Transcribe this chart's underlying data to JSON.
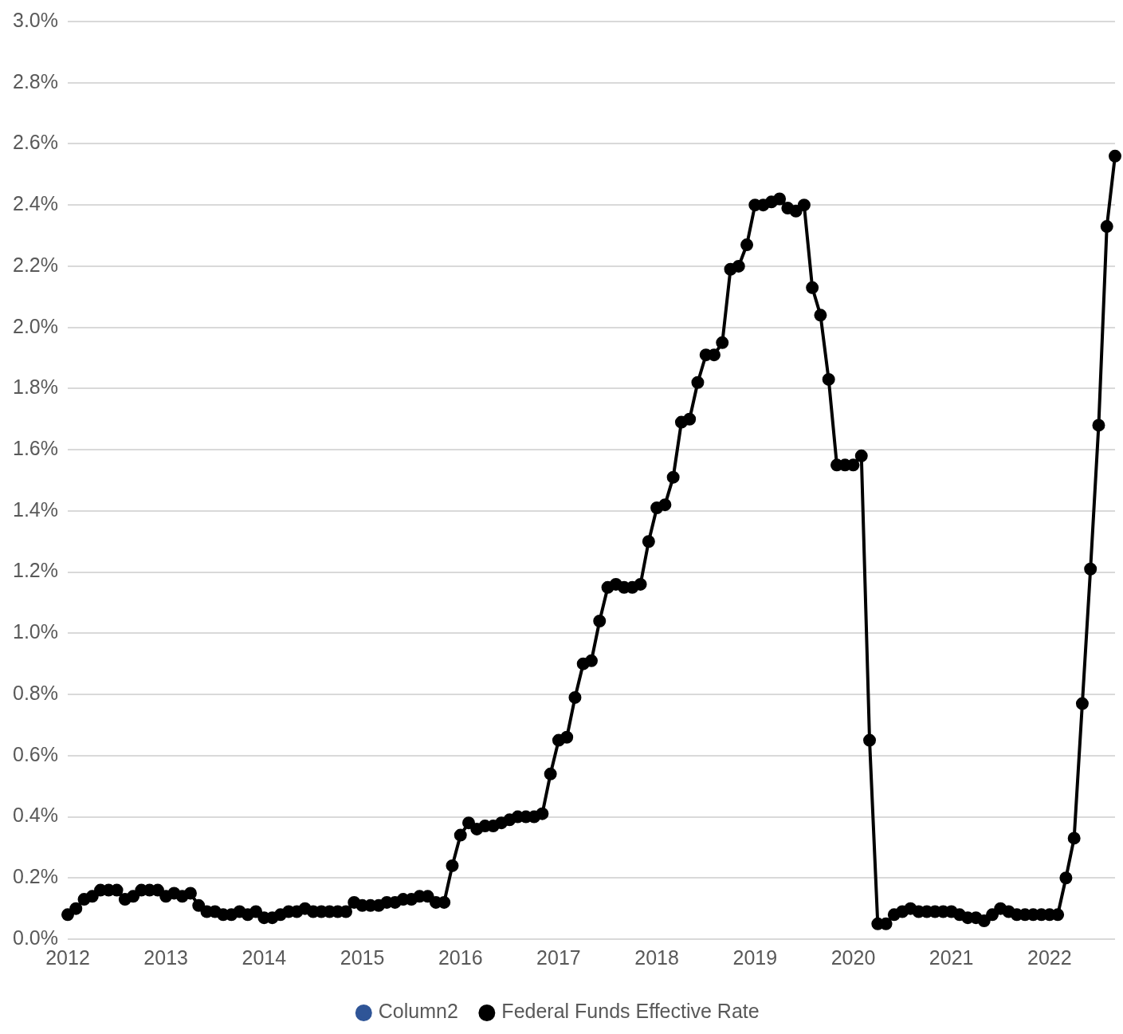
{
  "chart_data": {
    "type": "line",
    "x": [
      "2012-01",
      "2012-02",
      "2012-03",
      "2012-04",
      "2012-05",
      "2012-06",
      "2012-07",
      "2012-08",
      "2012-09",
      "2012-10",
      "2012-11",
      "2012-12",
      "2013-01",
      "2013-02",
      "2013-03",
      "2013-04",
      "2013-05",
      "2013-06",
      "2013-07",
      "2013-08",
      "2013-09",
      "2013-10",
      "2013-11",
      "2013-12",
      "2014-01",
      "2014-02",
      "2014-03",
      "2014-04",
      "2014-05",
      "2014-06",
      "2014-07",
      "2014-08",
      "2014-09",
      "2014-10",
      "2014-11",
      "2014-12",
      "2015-01",
      "2015-02",
      "2015-03",
      "2015-04",
      "2015-05",
      "2015-06",
      "2015-07",
      "2015-08",
      "2015-09",
      "2015-10",
      "2015-11",
      "2015-12",
      "2016-01",
      "2016-02",
      "2016-03",
      "2016-04",
      "2016-05",
      "2016-06",
      "2016-07",
      "2016-08",
      "2016-09",
      "2016-10",
      "2016-11",
      "2016-12",
      "2017-01",
      "2017-02",
      "2017-03",
      "2017-04",
      "2017-05",
      "2017-06",
      "2017-07",
      "2017-08",
      "2017-09",
      "2017-10",
      "2017-11",
      "2017-12",
      "2018-01",
      "2018-02",
      "2018-03",
      "2018-04",
      "2018-05",
      "2018-06",
      "2018-07",
      "2018-08",
      "2018-09",
      "2018-10",
      "2018-11",
      "2018-12",
      "2019-01",
      "2019-02",
      "2019-03",
      "2019-04",
      "2019-05",
      "2019-06",
      "2019-07",
      "2019-08",
      "2019-09",
      "2019-10",
      "2019-11",
      "2019-12",
      "2020-01",
      "2020-02",
      "2020-03",
      "2020-04",
      "2020-05",
      "2020-06",
      "2020-07",
      "2020-08",
      "2020-09",
      "2020-10",
      "2020-11",
      "2020-12",
      "2021-01",
      "2021-02",
      "2021-03",
      "2021-04",
      "2021-05",
      "2021-06",
      "2021-07",
      "2021-08",
      "2021-09",
      "2021-10",
      "2021-11",
      "2021-12",
      "2022-01",
      "2022-02",
      "2022-03",
      "2022-04",
      "2022-05",
      "2022-06",
      "2022-07",
      "2022-08",
      "2022-09"
    ],
    "series": [
      {
        "name": "Column2",
        "color": "#2f5597",
        "values": [
          null,
          null,
          null,
          null,
          null,
          null,
          null,
          null,
          null,
          null,
          null,
          null,
          null,
          null,
          null,
          null,
          null,
          null,
          null,
          null,
          null,
          null,
          null,
          null,
          null,
          null,
          null,
          null,
          null,
          null,
          null,
          null,
          null,
          null,
          null,
          null,
          null,
          null,
          null,
          null,
          null,
          null,
          null,
          null,
          null,
          null,
          null,
          null,
          null,
          null,
          null,
          null,
          null,
          null,
          null,
          null,
          null,
          null,
          null,
          null,
          null,
          null,
          null,
          null,
          null,
          null,
          null,
          null,
          null,
          null,
          null,
          null,
          null,
          null,
          null,
          null,
          null,
          null,
          null,
          null,
          null,
          null,
          null,
          null,
          null,
          null,
          null,
          null,
          null,
          null,
          null,
          null,
          null,
          null,
          null,
          null,
          null,
          null,
          null,
          null,
          null,
          null,
          null,
          null,
          null,
          null,
          null,
          null,
          null,
          null,
          null,
          null,
          null,
          null,
          null,
          null,
          null,
          null,
          null,
          null,
          null,
          null,
          null,
          null,
          null,
          null,
          null,
          null,
          null
        ]
      },
      {
        "name": "Federal Funds Effective Rate",
        "color": "#000000",
        "values": [
          0.08,
          0.1,
          0.13,
          0.14,
          0.16,
          0.16,
          0.16,
          0.13,
          0.14,
          0.16,
          0.16,
          0.16,
          0.14,
          0.15,
          0.14,
          0.15,
          0.11,
          0.09,
          0.09,
          0.08,
          0.08,
          0.09,
          0.08,
          0.09,
          0.07,
          0.07,
          0.08,
          0.09,
          0.09,
          0.1,
          0.09,
          0.09,
          0.09,
          0.09,
          0.09,
          0.12,
          0.11,
          0.11,
          0.11,
          0.12,
          0.12,
          0.13,
          0.13,
          0.14,
          0.14,
          0.12,
          0.12,
          0.24,
          0.34,
          0.38,
          0.36,
          0.37,
          0.37,
          0.38,
          0.39,
          0.4,
          0.4,
          0.4,
          0.41,
          0.54,
          0.65,
          0.66,
          0.79,
          0.9,
          0.91,
          1.04,
          1.15,
          1.16,
          1.15,
          1.15,
          1.16,
          1.3,
          1.41,
          1.42,
          1.51,
          1.69,
          1.7,
          1.82,
          1.91,
          1.91,
          1.95,
          2.19,
          2.2,
          2.27,
          2.4,
          2.4,
          2.41,
          2.42,
          2.39,
          2.38,
          2.4,
          2.13,
          2.04,
          1.83,
          1.55,
          1.55,
          1.55,
          1.58,
          0.65,
          0.05,
          0.05,
          0.08,
          0.09,
          0.1,
          0.09,
          0.09,
          0.09,
          0.09,
          0.09,
          0.08,
          0.07,
          0.07,
          0.06,
          0.08,
          0.1,
          0.09,
          0.08,
          0.08,
          0.08,
          0.08,
          0.08,
          0.08,
          0.2,
          0.33,
          0.77,
          1.21,
          1.68,
          2.33,
          2.56
        ]
      }
    ],
    "xlim": [
      "2012-01",
      "2022-09"
    ],
    "xticks": [
      "2012",
      "2013",
      "2014",
      "2015",
      "2016",
      "2017",
      "2018",
      "2019",
      "2020",
      "2021",
      "2022"
    ],
    "ylim": [
      0,
      3
    ],
    "yticks": [
      {
        "value": 0,
        "label": "0.0%"
      },
      {
        "value": 0.2,
        "label": "0.2%"
      },
      {
        "value": 0.4,
        "label": "0.4%"
      },
      {
        "value": 0.6,
        "label": "0.6%"
      },
      {
        "value": 0.8,
        "label": "0.8%"
      },
      {
        "value": 1.0,
        "label": "1.0%"
      },
      {
        "value": 1.2,
        "label": "1.2%"
      },
      {
        "value": 1.4,
        "label": "1.4%"
      },
      {
        "value": 1.6,
        "label": "1.6%"
      },
      {
        "value": 1.8,
        "label": "1.8%"
      },
      {
        "value": 2.0,
        "label": "2.0%"
      },
      {
        "value": 2.2,
        "label": "2.2%"
      },
      {
        "value": 2.4,
        "label": "2.4%"
      },
      {
        "value": 2.6,
        "label": "2.6%"
      },
      {
        "value": 2.8,
        "label": "2.8%"
      },
      {
        "value": 3.0,
        "label": "3.0%"
      }
    ],
    "grid": "y",
    "legend": "bottom",
    "marker": "circle",
    "line_style": "solid"
  }
}
